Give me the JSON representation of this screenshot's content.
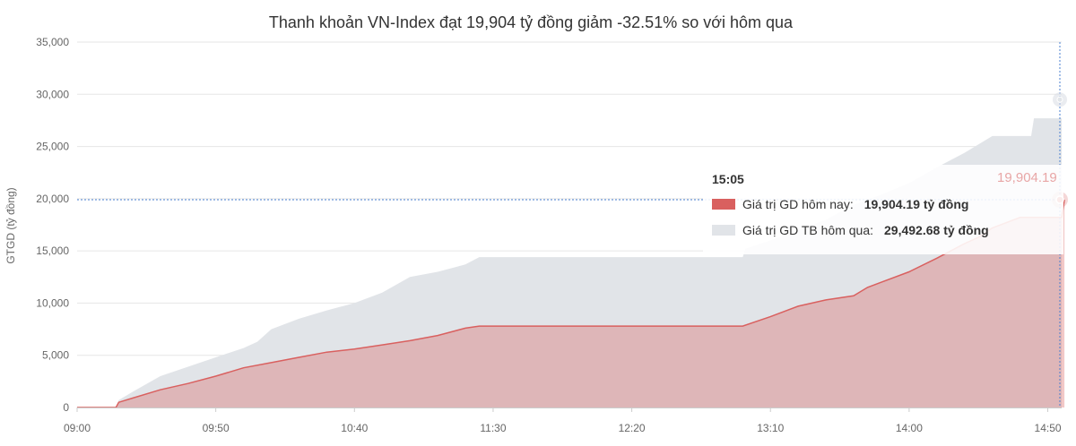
{
  "chart_data": {
    "type": "area",
    "title": "Thanh khoản VN-Index đạt 19,904 tỷ đồng giảm -32.51% so với hôm qua",
    "ylabel": "GTGD (tỷ đồng)",
    "xlabel": "",
    "ylim": [
      0,
      35000
    ],
    "y_ticks": [
      "0",
      "5,000",
      "10,000",
      "15,000",
      "20,000",
      "25,000",
      "30,000",
      "35,000"
    ],
    "x_ticks": [
      "09:00",
      "09:50",
      "10:40",
      "11:30",
      "12:20",
      "13:10",
      "14:00",
      "14:50"
    ],
    "grid": true,
    "series": [
      {
        "name": "Giá trị GD TB hôm qua",
        "color": "#e1e4e8",
        "points": [
          [
            "09:00",
            0
          ],
          [
            "09:14",
            0
          ],
          [
            "09:15",
            700
          ],
          [
            "09:20",
            1500
          ],
          [
            "09:30",
            3000
          ],
          [
            "09:40",
            3900
          ],
          [
            "09:50",
            4800
          ],
          [
            "10:00",
            5700
          ],
          [
            "10:05",
            6300
          ],
          [
            "10:10",
            7500
          ],
          [
            "10:20",
            8500
          ],
          [
            "10:30",
            9300
          ],
          [
            "10:40",
            10000
          ],
          [
            "10:50",
            11000
          ],
          [
            "11:00",
            12500
          ],
          [
            "11:10",
            13000
          ],
          [
            "11:20",
            13700
          ],
          [
            "11:25",
            14400
          ],
          [
            "11:30",
            14400
          ],
          [
            "12:30",
            14400
          ],
          [
            "13:00",
            14400
          ],
          [
            "13:01",
            15200
          ],
          [
            "13:10",
            16000
          ],
          [
            "13:20",
            17000
          ],
          [
            "13:30",
            18000
          ],
          [
            "13:40",
            19400
          ],
          [
            "13:50",
            20400
          ],
          [
            "14:00",
            21500
          ],
          [
            "14:10",
            23000
          ],
          [
            "14:20",
            24400
          ],
          [
            "14:30",
            26000
          ],
          [
            "14:44",
            26000
          ],
          [
            "14:45",
            27700
          ],
          [
            "14:55",
            27700
          ]
        ]
      },
      {
        "name": "Giá trị GD hôm nay",
        "color": "#d9605f",
        "points": [
          [
            "09:00",
            0
          ],
          [
            "09:14",
            0
          ],
          [
            "09:15",
            500
          ],
          [
            "09:20",
            900
          ],
          [
            "09:30",
            1700
          ],
          [
            "09:40",
            2300
          ],
          [
            "09:50",
            3000
          ],
          [
            "10:00",
            3800
          ],
          [
            "10:10",
            4300
          ],
          [
            "10:20",
            4800
          ],
          [
            "10:30",
            5300
          ],
          [
            "10:40",
            5600
          ],
          [
            "10:50",
            6000
          ],
          [
            "11:00",
            6400
          ],
          [
            "11:10",
            6900
          ],
          [
            "11:20",
            7600
          ],
          [
            "11:25",
            7800
          ],
          [
            "12:00",
            7800
          ],
          [
            "12:30",
            7800
          ],
          [
            "13:00",
            7800
          ],
          [
            "13:10",
            8700
          ],
          [
            "13:20",
            9700
          ],
          [
            "13:30",
            10300
          ],
          [
            "13:40",
            10700
          ],
          [
            "13:45",
            11500
          ],
          [
            "13:50",
            12000
          ],
          [
            "14:00",
            13000
          ],
          [
            "14:10",
            14300
          ],
          [
            "14:20",
            15700
          ],
          [
            "14:25",
            16300
          ],
          [
            "14:30",
            17200
          ],
          [
            "14:40",
            18200
          ],
          [
            "14:55",
            18200
          ],
          [
            "14:56",
            19904.19
          ]
        ]
      }
    ],
    "tooltip": {
      "time": "15:05",
      "today_label": "Giá trị GD hôm nay:",
      "today_value": "19,904.19 tỷ đồng",
      "prev_label": "Giá trị GD TB hôm qua:",
      "prev_value": "29,492.68 tỷ đồng",
      "today_color": "#d9605f",
      "prev_color": "#e1e4e8"
    },
    "crosshair_value": 19904.19,
    "end_label": "19,904.19",
    "prev_marker_value": 29492.68
  }
}
